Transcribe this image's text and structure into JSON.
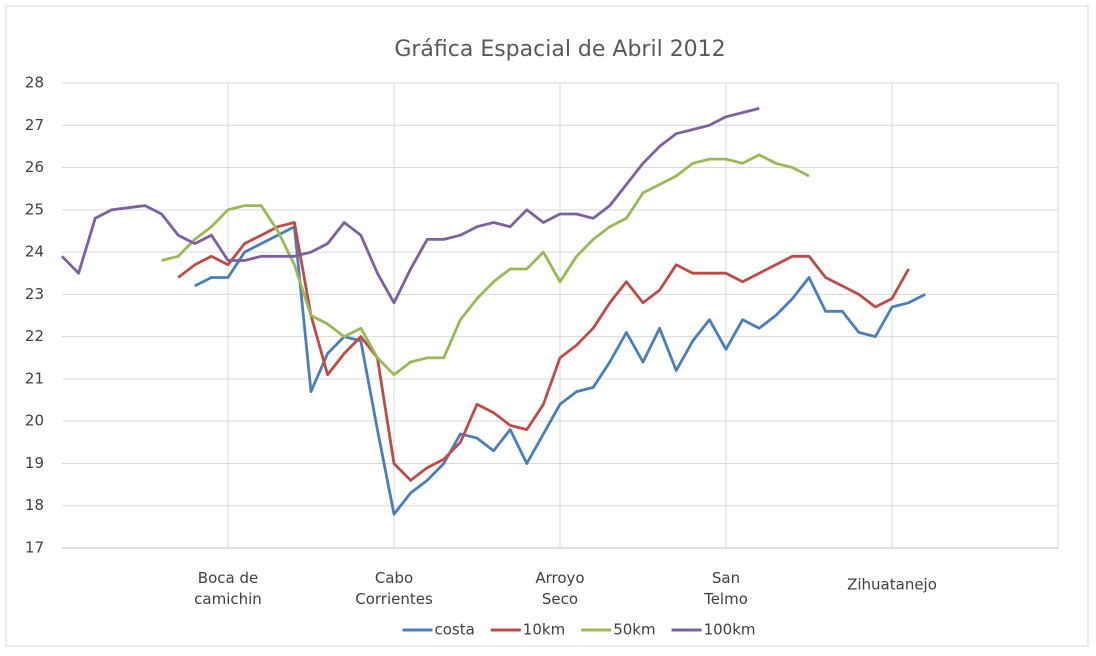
{
  "chart_data": {
    "type": "line",
    "title": "Gráfica Espacial de Abril 2012",
    "x": [
      0,
      0.1,
      0.2,
      0.3,
      0.4,
      0.5,
      0.6,
      0.7,
      0.8,
      0.9,
      1,
      1.1,
      1.2,
      1.3,
      1.4,
      1.5,
      1.6,
      1.7,
      1.8,
      1.9,
      2,
      2.1,
      2.2,
      2.3,
      2.4,
      2.5,
      2.6,
      2.7,
      2.8,
      2.9,
      3,
      3.1,
      3.2,
      3.3,
      3.4,
      3.5,
      3.6,
      3.7,
      3.8,
      3.9,
      4,
      4.1,
      4.2,
      4.3,
      4.4,
      4.5,
      4.6,
      4.7,
      4.8,
      4.9,
      5,
      5.1,
      5.2
    ],
    "xlim": [
      0,
      6
    ],
    "xticks": [
      {
        "value": 1,
        "label": "Boca de\ncamichin"
      },
      {
        "value": 2,
        "label": "Cabo\nCorrientes"
      },
      {
        "value": 3,
        "label": "Arroyo\nSeco"
      },
      {
        "value": 4,
        "label": "San\nTelmo"
      },
      {
        "value": 5,
        "label": "Zihuatanejo"
      }
    ],
    "ylim": [
      17,
      28
    ],
    "yticks": [
      17,
      18,
      19,
      20,
      21,
      22,
      23,
      24,
      25,
      26,
      27,
      28
    ],
    "grid": true,
    "legend": "bottom",
    "series": [
      {
        "name": "costa",
        "color": "#4a7ebb",
        "values": [
          null,
          null,
          null,
          null,
          null,
          null,
          null,
          null,
          23.2,
          23.4,
          23.4,
          24.0,
          24.2,
          24.4,
          24.6,
          20.7,
          21.6,
          22.0,
          21.9,
          19.8,
          17.8,
          18.3,
          18.6,
          19.0,
          19.7,
          19.6,
          19.3,
          19.8,
          19.0,
          19.7,
          20.4,
          20.7,
          20.8,
          21.4,
          22.1,
          21.4,
          22.2,
          21.2,
          21.9,
          22.4,
          21.7,
          22.4,
          22.2,
          22.5,
          22.9,
          23.4,
          22.6,
          22.6,
          22.1,
          22.0,
          22.7,
          22.8,
          23.0
        ]
      },
      {
        "name": "10km",
        "color": "#be4b48",
        "values": [
          null,
          null,
          null,
          null,
          null,
          null,
          null,
          23.4,
          23.7,
          23.9,
          23.7,
          24.2,
          24.4,
          24.6,
          24.7,
          22.5,
          21.1,
          21.6,
          22.0,
          21.5,
          19.0,
          18.6,
          18.9,
          19.1,
          19.5,
          20.4,
          20.2,
          19.9,
          19.8,
          20.4,
          21.5,
          21.8,
          22.2,
          22.8,
          23.3,
          22.8,
          23.1,
          23.7,
          23.5,
          23.5,
          23.5,
          23.3,
          23.5,
          23.7,
          23.9,
          23.9,
          23.4,
          23.2,
          23.0,
          22.7,
          22.9,
          23.6,
          null
        ]
      },
      {
        "name": "50km",
        "color": "#98b954",
        "values": [
          null,
          null,
          null,
          null,
          null,
          null,
          23.8,
          23.9,
          24.3,
          24.6,
          25.0,
          25.1,
          25.1,
          24.5,
          23.7,
          22.5,
          22.3,
          22.0,
          22.2,
          21.5,
          21.1,
          21.4,
          21.5,
          21.5,
          22.4,
          22.9,
          23.3,
          23.6,
          23.6,
          24.0,
          23.3,
          23.9,
          24.3,
          24.6,
          24.8,
          25.4,
          25.6,
          25.8,
          26.1,
          26.2,
          26.2,
          26.1,
          26.3,
          26.1,
          26.0,
          25.8,
          null,
          null,
          null,
          null,
          null,
          null,
          null
        ]
      },
      {
        "name": "100km",
        "color": "#7d60a0",
        "values": [
          23.9,
          23.5,
          24.8,
          25.0,
          25.05,
          25.1,
          24.9,
          24.4,
          24.2,
          24.4,
          23.8,
          23.8,
          23.9,
          23.9,
          23.9,
          24.0,
          24.2,
          24.7,
          24.4,
          23.5,
          22.8,
          23.6,
          24.3,
          24.3,
          24.4,
          24.6,
          24.7,
          24.6,
          25.0,
          24.7,
          24.9,
          24.9,
          24.8,
          25.1,
          25.6,
          26.1,
          26.5,
          26.8,
          26.9,
          27.0,
          27.2,
          27.3,
          27.4,
          null,
          null,
          null,
          null,
          null,
          null,
          null,
          null,
          null,
          null
        ]
      }
    ]
  }
}
